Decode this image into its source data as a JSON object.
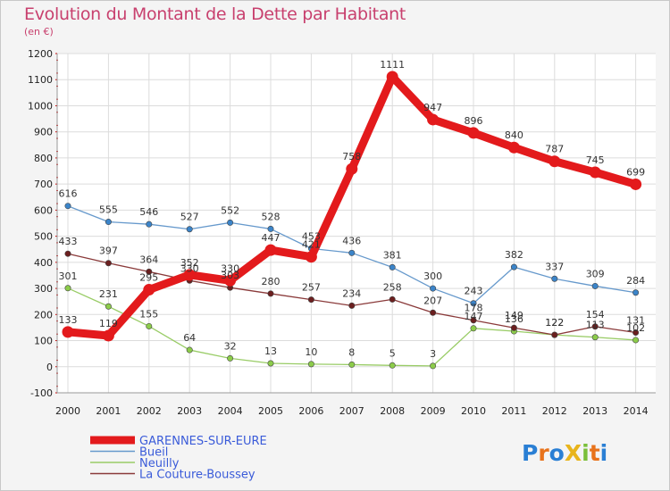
{
  "header": {
    "title": "Evolution du Montant de la Dette par Habitant",
    "subtitle": "(en €)"
  },
  "logo": {
    "text": "ProXiti",
    "letters": [
      "P",
      "r",
      "o",
      "X",
      "i",
      "t",
      "i"
    ],
    "colors": [
      "#2a7fd4",
      "#e8731c",
      "#2a7fd4",
      "#e8b41c",
      "#7abf3a",
      "#e8731c",
      "#2a7fd4"
    ]
  },
  "chart_data": {
    "type": "line",
    "title": "Evolution du Montant de la Dette par Habitant",
    "subtitle": "(en €)",
    "x": [
      "2000",
      "2001",
      "2002",
      "2003",
      "2004",
      "2005",
      "2006",
      "2007",
      "2008",
      "2009",
      "2010",
      "2011",
      "2012",
      "2013",
      "2014"
    ],
    "ylim": [
      -100,
      1200
    ],
    "yticks": [
      -100,
      0,
      100,
      200,
      300,
      400,
      500,
      600,
      700,
      800,
      900,
      1000,
      1100,
      1200
    ],
    "ytick_labels": [
      "-100",
      "0",
      "100",
      "200",
      "300",
      "400",
      "500",
      "600",
      "700",
      "800",
      "900",
      "1000",
      "1100",
      "1200"
    ],
    "grid": true,
    "legend_position": "bottom-left",
    "series": [
      {
        "name": "GARENNES-SUR-EURE",
        "color": "#e31a1c",
        "marker": "#e31a1c",
        "emphasis": true,
        "values": [
          133,
          119,
          295,
          352,
          330,
          447,
          421,
          758,
          1111,
          947,
          896,
          840,
          787,
          745,
          699
        ],
        "labels": [
          "133",
          "119",
          "295",
          "352",
          "330",
          "447",
          "421",
          "758",
          "1111",
          "947",
          "896",
          "840",
          "787",
          "745",
          "699"
        ]
      },
      {
        "name": "Bueil",
        "color": "#6699cc",
        "marker": "#3b84c9",
        "values": [
          616,
          555,
          546,
          527,
          552,
          528,
          453,
          436,
          381,
          300,
          243,
          382,
          337,
          309,
          284
        ],
        "labels": [
          "616",
          "555",
          "546",
          "527",
          "552",
          "528",
          "453",
          "436",
          "381",
          "300",
          "243",
          "382",
          "337",
          "309",
          "284"
        ]
      },
      {
        "name": "Neuilly",
        "color": "#99cc66",
        "marker": "#8ccc4a",
        "values": [
          301,
          231,
          155,
          64,
          32,
          13,
          10,
          8,
          5,
          3,
          147,
          136,
          122,
          113,
          102
        ],
        "labels": [
          "301",
          "231",
          "155",
          "64",
          "32",
          "13",
          "10",
          "8",
          "5",
          "3",
          "147",
          "136",
          "122",
          "113",
          "102"
        ]
      },
      {
        "name": "La Couture-Boussey",
        "color": "#8a3a3a",
        "marker": "#6b1f1f",
        "values": [
          433,
          397,
          364,
          330,
          303,
          280,
          257,
          234,
          258,
          207,
          178,
          149,
          122,
          154,
          131
        ],
        "labels": [
          "433",
          "397",
          "364",
          "330",
          "303",
          "280",
          "257",
          "234",
          "258",
          "207",
          "178",
          "149",
          "122",
          "154",
          "131"
        ]
      }
    ]
  }
}
